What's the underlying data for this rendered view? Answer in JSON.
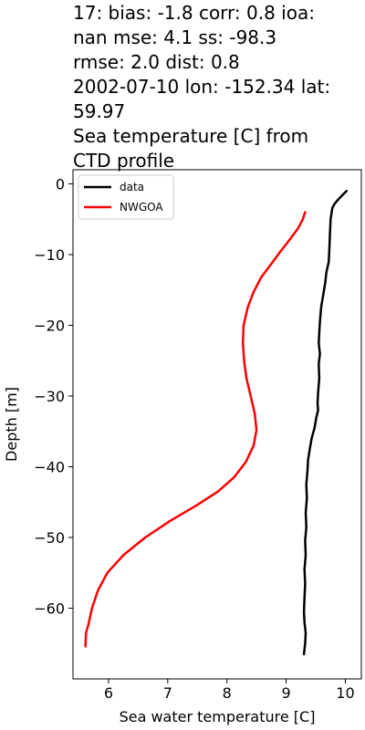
{
  "chart_data": {
    "type": "line",
    "title_lines": [
      "17: bias: -1.8  corr: 0.8  ioa:",
      "nan  mse: 4.1  ss: -98.3",
      "rmse: 2.0  dist: 0.8",
      "2002-07-10 lon: -152.34 lat:",
      "59.97",
      "Sea temperature [C] from",
      "CTD profile"
    ],
    "xlabel": "Sea water temperature [C]",
    "ylabel": "Depth [m]",
    "xlim": [
      5.4,
      10.27
    ],
    "ylim": [
      -70,
      2
    ],
    "xticks": [
      6,
      7,
      8,
      9,
      10
    ],
    "yticks": [
      0,
      -10,
      -20,
      -30,
      -40,
      -50,
      -60
    ],
    "xtick_labels": [
      "6",
      "7",
      "8",
      "9",
      "10"
    ],
    "ytick_labels": [
      "0",
      "−10",
      "−20",
      "−30",
      "−40",
      "−50",
      "−60"
    ],
    "grid": false,
    "legend_position": "top-left",
    "series": [
      {
        "name": "data",
        "color": "#000000",
        "points": [
          [
            10.02,
            -1.0
          ],
          [
            9.95,
            -1.6
          ],
          [
            9.88,
            -2.2
          ],
          [
            9.82,
            -2.8
          ],
          [
            9.78,
            -3.4
          ],
          [
            9.75,
            -5.0
          ],
          [
            9.74,
            -7.0
          ],
          [
            9.73,
            -9.0
          ],
          [
            9.72,
            -11.0
          ],
          [
            9.68,
            -12.5
          ],
          [
            9.66,
            -14.0
          ],
          [
            9.63,
            -15.5
          ],
          [
            9.62,
            -16.0
          ],
          [
            9.59,
            -17.5
          ],
          [
            9.57,
            -19.5
          ],
          [
            9.56,
            -21.0
          ],
          [
            9.55,
            -22.5
          ],
          [
            9.57,
            -24.0
          ],
          [
            9.55,
            -25.5
          ],
          [
            9.56,
            -27.5
          ],
          [
            9.54,
            -29.5
          ],
          [
            9.53,
            -31.0
          ],
          [
            9.54,
            -32.0
          ],
          [
            9.51,
            -33.0
          ],
          [
            9.48,
            -34.5
          ],
          [
            9.43,
            -36.0
          ],
          [
            9.4,
            -37.5
          ],
          [
            9.37,
            -39.0
          ],
          [
            9.36,
            -40.5
          ],
          [
            9.34,
            -42.5
          ],
          [
            9.35,
            -44.5
          ],
          [
            9.33,
            -46.5
          ],
          [
            9.34,
            -48.5
          ],
          [
            9.32,
            -50.5
          ],
          [
            9.33,
            -52.5
          ],
          [
            9.31,
            -54.5
          ],
          [
            9.32,
            -56.5
          ],
          [
            9.31,
            -58.5
          ],
          [
            9.3,
            -60.5
          ],
          [
            9.31,
            -62.0
          ],
          [
            9.33,
            -63.5
          ],
          [
            9.32,
            -65.0
          ],
          [
            9.3,
            -66.5
          ]
        ]
      },
      {
        "name": "NWGOA",
        "color": "#ff0000",
        "points": [
          [
            9.32,
            -4.0
          ],
          [
            9.28,
            -5.0
          ],
          [
            9.2,
            -6.3
          ],
          [
            9.05,
            -8.0
          ],
          [
            8.9,
            -9.6
          ],
          [
            8.75,
            -11.3
          ],
          [
            8.58,
            -13.2
          ],
          [
            8.45,
            -15.3
          ],
          [
            8.35,
            -17.5
          ],
          [
            8.28,
            -20.0
          ],
          [
            8.27,
            -22.5
          ],
          [
            8.29,
            -25.0
          ],
          [
            8.33,
            -27.5
          ],
          [
            8.4,
            -30.0
          ],
          [
            8.47,
            -32.5
          ],
          [
            8.5,
            -34.8
          ],
          [
            8.45,
            -37.0
          ],
          [
            8.32,
            -39.3
          ],
          [
            8.12,
            -41.5
          ],
          [
            7.85,
            -43.5
          ],
          [
            7.48,
            -45.5
          ],
          [
            7.05,
            -47.6
          ],
          [
            6.62,
            -50.0
          ],
          [
            6.25,
            -52.5
          ],
          [
            5.98,
            -55.0
          ],
          [
            5.82,
            -57.5
          ],
          [
            5.72,
            -60.0
          ],
          [
            5.66,
            -62.3
          ],
          [
            5.62,
            -63.5
          ],
          [
            5.61,
            -65.4
          ]
        ]
      }
    ]
  }
}
